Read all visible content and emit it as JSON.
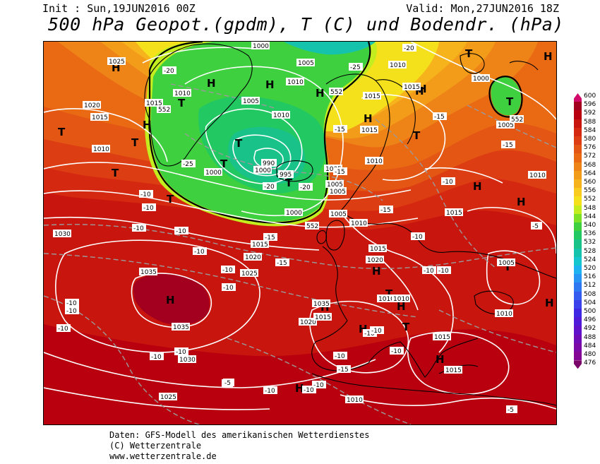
{
  "header": {
    "init": "Init : Sun,19JUN2016 00Z",
    "valid": "Valid: Mon,27JUN2016 18Z",
    "title": "500 hPa Geopot.(gpdm), T (C) und Bodendr. (hPa)"
  },
  "legend": {
    "labels": [
      "600",
      "596",
      "592",
      "588",
      "584",
      "580",
      "576",
      "572",
      "568",
      "564",
      "560",
      "556",
      "552",
      "548",
      "544",
      "540",
      "536",
      "532",
      "528",
      "524",
      "520",
      "516",
      "512",
      "508",
      "504",
      "500",
      "496",
      "492",
      "488",
      "484",
      "480",
      "476"
    ],
    "colors": [
      "#d10a6b",
      "#a3001f",
      "#b8000e",
      "#c8150e",
      "#d52810",
      "#dc3d12",
      "#e35614",
      "#ea6a14",
      "#ee8317",
      "#f39c1a",
      "#f6b31c",
      "#f8cb1e",
      "#f4e11c",
      "#c4ed1f",
      "#7de126",
      "#3fd040",
      "#22c862",
      "#19c289",
      "#15c3ad",
      "#16c6cf",
      "#1eb3f0",
      "#2695f3",
      "#2e79f2",
      "#345cee",
      "#3a40ea",
      "#3f28e4",
      "#4f1ad8",
      "#5f12c9",
      "#6e0db8",
      "#7a09a6",
      "#830694",
      "#7a036a"
    ]
  },
  "map_labels": {
    "highs": [
      "H",
      "H",
      "H",
      "H",
      "H",
      "H",
      "H",
      "H",
      "H",
      "H",
      "H",
      "H",
      "H",
      "H",
      "H",
      "H",
      "H",
      "H",
      "H"
    ],
    "lows": [
      "T",
      "T",
      "T",
      "T",
      "T",
      "T",
      "T",
      "T",
      "T",
      "T",
      "T",
      "T",
      "T",
      "T"
    ],
    "isobars": [
      "1025",
      "1010",
      "1015",
      "1020",
      "1015",
      "1010",
      "1000",
      "1005",
      "1005",
      "1010",
      "1000",
      "1000",
      "995",
      "990",
      "1005",
      "1005",
      "1010",
      "1015",
      "1015",
      "1010",
      "1000",
      "1005",
      "1010",
      "1015",
      "1015",
      "1020",
      "1030",
      "1035",
      "1035",
      "1030",
      "1025",
      "1020",
      "1025",
      "1020",
      "1015",
      "1015",
      "1010",
      "1010",
      "1035",
      "1015",
      "1010",
      "1005",
      "1010",
      "1015",
      "1010",
      "1005",
      "1010",
      "1000",
      "1005",
      "1015"
    ],
    "heights": [
      "552",
      "552",
      "552",
      "552"
    ],
    "temps": [
      "-20",
      "-25",
      "-20",
      "-15",
      "-25",
      "-20",
      "-20",
      "-15",
      "-10",
      "-10",
      "-10",
      "-5",
      "-10",
      "-10",
      "-15",
      "-10",
      "-15",
      "-10",
      "-10",
      "-15",
      "-15",
      "-10",
      "-10",
      "-15",
      "-10",
      "-10",
      "-10",
      "-10",
      "-5",
      "-10",
      "-10",
      "-10",
      "-10",
      "-5",
      "-10",
      "-10",
      "-15",
      "-10",
      "-10",
      "-10",
      "-5"
    ]
  },
  "footer": {
    "line1": "Daten: GFS-Modell des amerikanischen Wetterdienstes",
    "line2": "(C) Wetterzentrale",
    "line3": "www.wetterzentrale.de"
  }
}
